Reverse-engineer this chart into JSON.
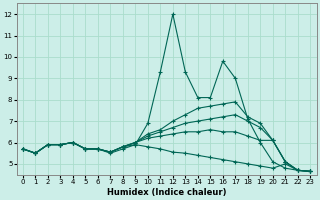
{
  "xlabel": "Humidex (Indice chaleur)",
  "background_color": "#cceee8",
  "grid_color": "#aaddcc",
  "line_color": "#006655",
  "xlim": [
    -0.5,
    23.5
  ],
  "ylim": [
    4.5,
    12.5
  ],
  "yticks": [
    5,
    6,
    7,
    8,
    9,
    10,
    11,
    12
  ],
  "xticks": [
    0,
    1,
    2,
    3,
    4,
    5,
    6,
    7,
    8,
    9,
    10,
    11,
    12,
    13,
    14,
    15,
    16,
    17,
    18,
    19,
    20,
    21,
    22,
    23
  ],
  "lines": [
    {
      "x": [
        0,
        1,
        2,
        3,
        4,
        5,
        6,
        7,
        8,
        9,
        10,
        11,
        12,
        13,
        14,
        15,
        16,
        17,
        18,
        19,
        20,
        21,
        22,
        23
      ],
      "y": [
        5.7,
        5.5,
        5.9,
        5.9,
        6.0,
        5.7,
        5.7,
        5.5,
        5.7,
        5.9,
        6.9,
        9.3,
        12.0,
        9.3,
        8.1,
        8.1,
        9.8,
        9.0,
        7.1,
        6.0,
        5.1,
        4.8,
        4.7,
        4.65
      ]
    },
    {
      "x": [
        0,
        1,
        2,
        3,
        4,
        5,
        6,
        7,
        8,
        9,
        10,
        11,
        12,
        13,
        14,
        15,
        16,
        17,
        18,
        19,
        20,
        21,
        22,
        23
      ],
      "y": [
        5.7,
        5.5,
        5.9,
        5.9,
        6.0,
        5.7,
        5.7,
        5.55,
        5.8,
        6.0,
        6.4,
        6.6,
        7.0,
        7.3,
        7.6,
        7.7,
        7.8,
        7.9,
        7.2,
        6.9,
        6.1,
        5.1,
        4.7,
        4.65
      ]
    },
    {
      "x": [
        0,
        1,
        2,
        3,
        4,
        5,
        6,
        7,
        8,
        9,
        10,
        11,
        12,
        13,
        14,
        15,
        16,
        17,
        18,
        19,
        20,
        21,
        22,
        23
      ],
      "y": [
        5.7,
        5.5,
        5.9,
        5.9,
        6.0,
        5.7,
        5.7,
        5.55,
        5.8,
        6.0,
        6.3,
        6.5,
        6.7,
        6.9,
        7.0,
        7.1,
        7.2,
        7.3,
        7.0,
        6.7,
        6.1,
        5.1,
        4.7,
        4.65
      ]
    },
    {
      "x": [
        0,
        1,
        2,
        3,
        4,
        5,
        6,
        7,
        8,
        9,
        10,
        11,
        12,
        13,
        14,
        15,
        16,
        17,
        18,
        19,
        20,
        21,
        22,
        23
      ],
      "y": [
        5.7,
        5.5,
        5.9,
        5.9,
        6.0,
        5.7,
        5.7,
        5.55,
        5.8,
        6.0,
        6.2,
        6.3,
        6.4,
        6.5,
        6.5,
        6.6,
        6.5,
        6.5,
        6.3,
        6.1,
        6.1,
        5.1,
        4.7,
        4.65
      ]
    },
    {
      "x": [
        0,
        1,
        2,
        3,
        4,
        5,
        6,
        7,
        8,
        9,
        10,
        11,
        12,
        13,
        14,
        15,
        16,
        17,
        18,
        19,
        20,
        21,
        22,
        23
      ],
      "y": [
        5.7,
        5.5,
        5.9,
        5.9,
        6.0,
        5.7,
        5.7,
        5.55,
        5.8,
        5.9,
        5.8,
        5.7,
        5.55,
        5.5,
        5.4,
        5.3,
        5.2,
        5.1,
        5.0,
        4.9,
        4.8,
        5.0,
        4.7,
        4.65
      ]
    }
  ]
}
